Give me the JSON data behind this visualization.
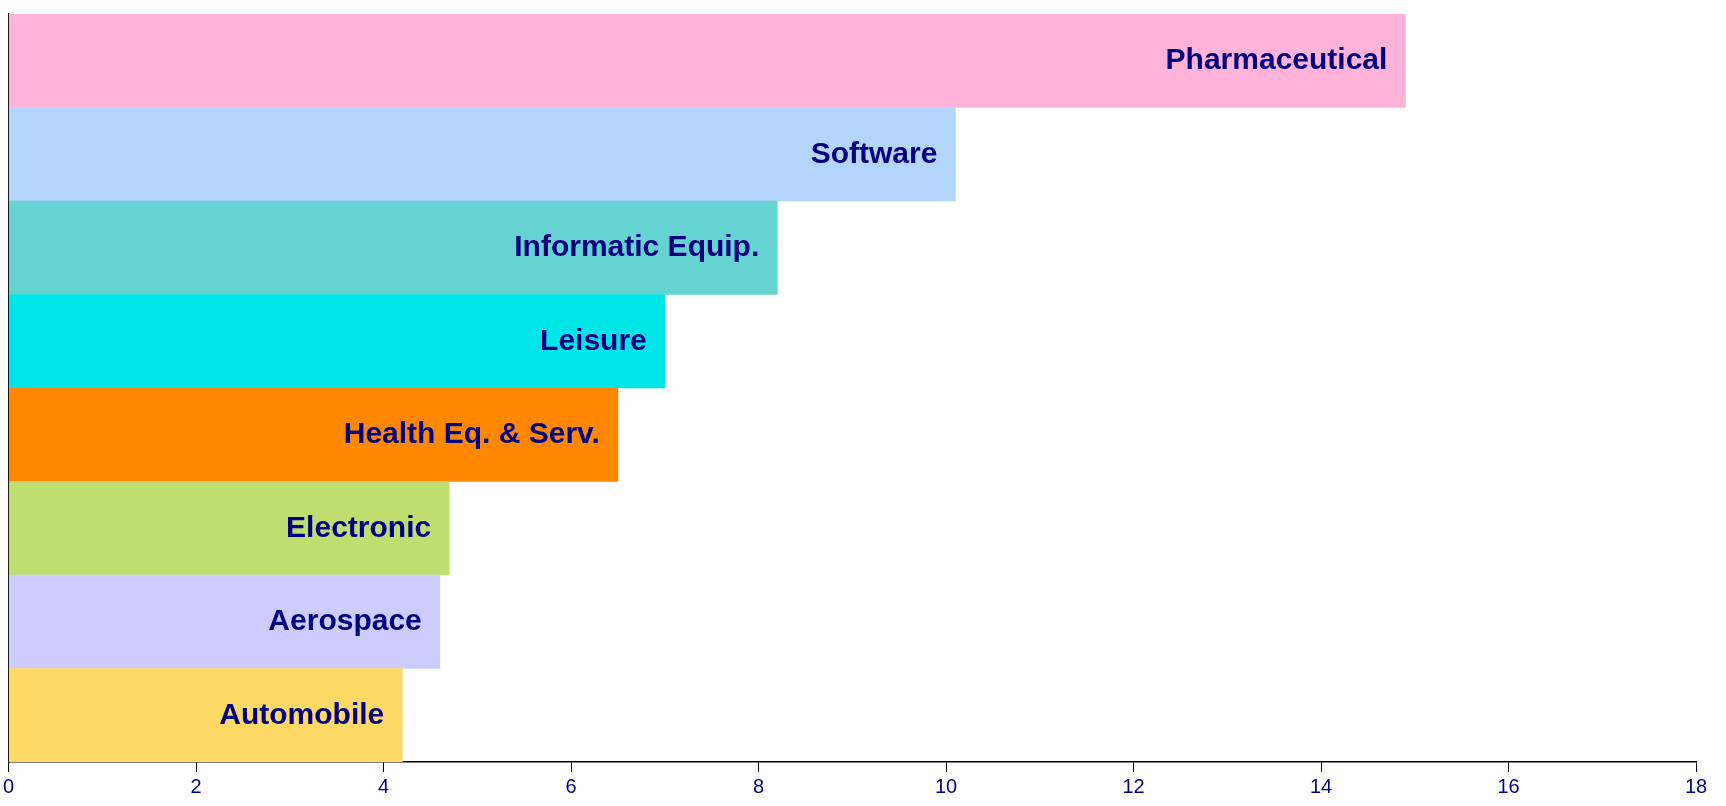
{
  "chart_data": {
    "type": "bar",
    "orientation": "horizontal",
    "categories": [
      "Pharmaceutical",
      "Software",
      "Informatic Equip.",
      "Leisure",
      "Health Eq. & Serv.",
      "Electronic",
      "Aerospace",
      "Automobile"
    ],
    "values": [
      14.9,
      10.1,
      8.2,
      7.0,
      6.5,
      4.7,
      4.6,
      4.2
    ],
    "colors": [
      "#ffb3d9",
      "#b3d5fb",
      "#66d3d3",
      "#00e5e8",
      "#ff8800",
      "#c0dd70",
      "#ccccff",
      "#ffd966"
    ],
    "xlim": [
      0,
      18
    ],
    "xticks": [
      0,
      2,
      4,
      6,
      8,
      10,
      12,
      14,
      16,
      18
    ],
    "grid": false,
    "legend": false
  }
}
